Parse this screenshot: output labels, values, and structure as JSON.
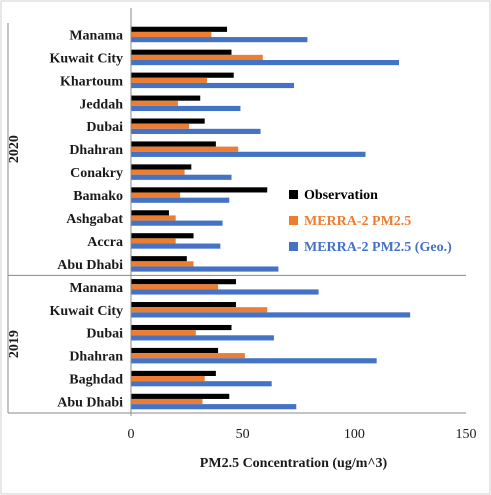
{
  "chart_data": {
    "type": "bar",
    "orientation": "horizontal",
    "xlabel": "PM2.5 Concentration (ug/m^3)",
    "xlim": [
      0,
      150
    ],
    "xticks": [
      0,
      50,
      100,
      150
    ],
    "grid": false,
    "legend_position": "right",
    "groups": [
      {
        "name": "2020",
        "categories": [
          "Manama",
          "Kuwait City",
          "Khartoum",
          "Jeddah",
          "Dubai",
          "Dhahran",
          "Conakry",
          "Bamako",
          "Ashgabat",
          "Accra",
          "Abu Dhabi"
        ]
      },
      {
        "name": "2019",
        "categories": [
          "Manama",
          "Kuwait City",
          "Dubai",
          "Dhahran",
          "Baghdad",
          "Abu Dhabi"
        ]
      }
    ],
    "series": [
      {
        "name": "Observation",
        "color": "#000000",
        "values": [
          43,
          45,
          46,
          31,
          33,
          38,
          27,
          61,
          17,
          28,
          25,
          47,
          47,
          45,
          39,
          38,
          44
        ]
      },
      {
        "name": "MERRA-2 PM2.5",
        "color": "#ED7D31",
        "values": [
          36,
          59,
          34,
          21,
          26,
          48,
          24,
          22,
          20,
          20,
          28,
          39,
          61,
          29,
          51,
          33,
          32
        ]
      },
      {
        "name": "MERRA-2 PM2.5 (Geo.)",
        "color": "#4472C4",
        "values": [
          79,
          120,
          73,
          49,
          58,
          105,
          45,
          44,
          41,
          40,
          66,
          84,
          125,
          64,
          110,
          63,
          74
        ]
      }
    ]
  }
}
